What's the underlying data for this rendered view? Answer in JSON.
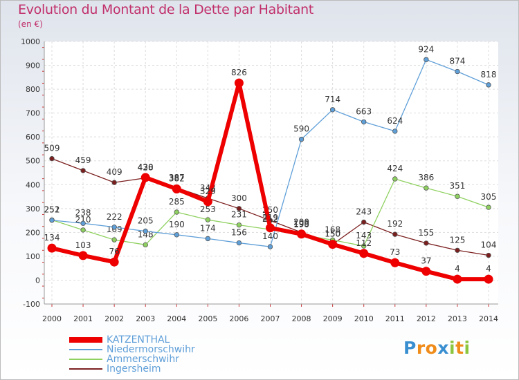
{
  "title": "Evolution du Montant de la Dette par Habitant",
  "subtitle": "(en €)",
  "logo": {
    "letters": [
      "P",
      "r",
      "o",
      "x",
      "i",
      "t",
      "i"
    ],
    "colors": [
      "#3a8fd0",
      "#f08c1a",
      "#f08c1a",
      "#3a8fd0",
      "#8cc63f",
      "#f08c1a",
      "#8cc63f"
    ]
  },
  "chart_data": {
    "type": "line",
    "x": [
      "2000",
      "2001",
      "2002",
      "2003",
      "2004",
      "2005",
      "2006",
      "2007",
      "2008",
      "2009",
      "2010",
      "2011",
      "2012",
      "2013",
      "2014"
    ],
    "ylim": [
      -100,
      1000
    ],
    "yticks": [
      "-100",
      "0",
      "100",
      "200",
      "300",
      "400",
      "500",
      "600",
      "700",
      "800",
      "900",
      "1000"
    ],
    "grid": true,
    "legend_position": "bottom-left",
    "series": [
      {
        "name": "Ingersheim",
        "color": "#7b1e1e",
        "values": [
          509,
          459,
          409,
          428,
          387,
          343,
          300,
          250,
          200,
          150,
          243,
          192,
          155,
          125,
          104
        ],
        "labels": [
          "509",
          "459",
          "409",
          "428",
          "387",
          "343",
          "300",
          "250",
          "200",
          "150",
          "243",
          "192",
          "155",
          "125",
          "104"
        ]
      },
      {
        "name": "Ammerschwihr",
        "color": "#8fd160",
        "values": [
          252,
          210,
          169,
          148,
          285,
          253,
          231,
          212,
          190,
          168,
          143,
          424,
          386,
          351,
          305
        ],
        "labels": [
          "252",
          "210",
          "169",
          "148",
          "285",
          "253",
          "231",
          "212",
          "190",
          "168",
          "143",
          "424",
          "386",
          "351",
          "305"
        ]
      },
      {
        "name": "Niedermorschwihr",
        "color": "#5f9fd8",
        "values": [
          251,
          238,
          222,
          205,
          190,
          174,
          156,
          140,
          590,
          714,
          663,
          624,
          924,
          874,
          818
        ],
        "labels": [
          "251",
          "238",
          "222",
          "205",
          "190",
          "174",
          "156",
          "140",
          "590",
          "714",
          "663",
          "624",
          "924",
          "874",
          "818"
        ]
      },
      {
        "name": "KATZENTHAL",
        "color": "#ee0000",
        "values": [
          134,
          103,
          76,
          430,
          382,
          329,
          826,
          219,
          193,
          150,
          112,
          73,
          37,
          4,
          4
        ],
        "labels": [
          "134",
          "103",
          "76",
          "430",
          "382",
          "329",
          "826",
          "219",
          "193",
          "150",
          "112",
          "73",
          "37",
          "4",
          "4"
        ]
      }
    ],
    "legend_order": [
      "KATZENTHAL",
      "Niedermorschwihr",
      "Ammerschwihr",
      "Ingersheim"
    ]
  }
}
